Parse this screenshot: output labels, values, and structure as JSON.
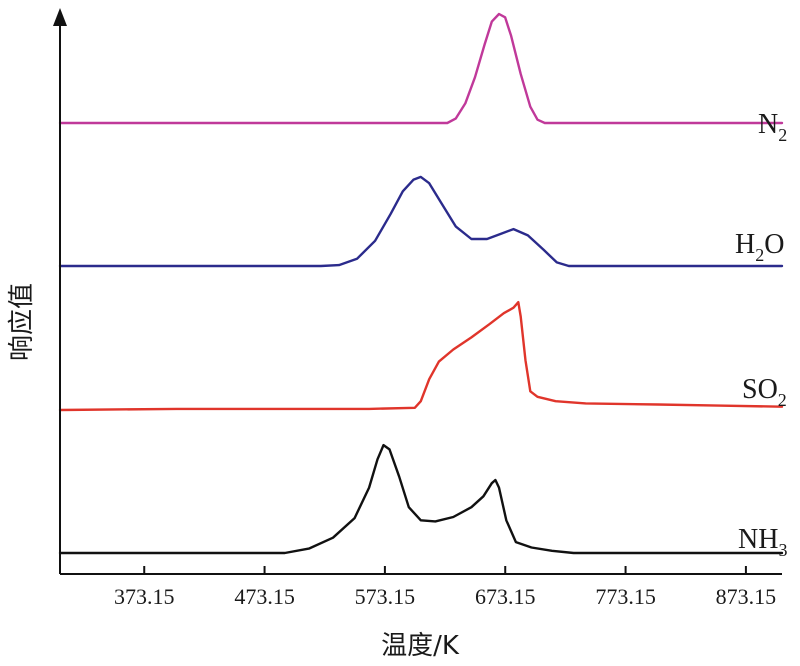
{
  "chart_data": {
    "type": "line",
    "xlabel": "温度/K",
    "ylabel": "响应值",
    "xlim": [
      303.15,
      903.15
    ],
    "x_ticks": [
      "373.15",
      "473.15",
      "573.15",
      "673.15",
      "773.15",
      "873.15"
    ],
    "y_ticks": [],
    "grid": false,
    "legend": "inline labels at right end of each curve",
    "series": [
      {
        "name": "N2",
        "label_main": "N",
        "label_sub": "2",
        "color": "#c0399a",
        "points": [
          [
            303.15,
            0.0
          ],
          [
            625,
            0.0
          ],
          [
            632,
            0.04
          ],
          [
            640,
            0.18
          ],
          [
            648,
            0.42
          ],
          [
            656,
            0.72
          ],
          [
            662,
            0.93
          ],
          [
            668,
            1.0
          ],
          [
            673,
            0.97
          ],
          [
            678,
            0.8
          ],
          [
            686,
            0.45
          ],
          [
            694,
            0.15
          ],
          [
            700,
            0.03
          ],
          [
            706,
            0.0
          ],
          [
            903.15,
            0.0
          ]
        ]
      },
      {
        "name": "H2O",
        "label_main": "H",
        "label_sub": "2",
        "label_tail": "O",
        "color": "#2b2b8c",
        "points": [
          [
            303.15,
            0.0
          ],
          [
            520,
            0.0
          ],
          [
            535,
            0.01
          ],
          [
            550,
            0.08
          ],
          [
            565,
            0.28
          ],
          [
            578,
            0.58
          ],
          [
            588,
            0.83
          ],
          [
            597,
            0.96
          ],
          [
            603,
            0.99
          ],
          [
            610,
            0.92
          ],
          [
            620,
            0.7
          ],
          [
            632,
            0.44
          ],
          [
            645,
            0.3
          ],
          [
            658,
            0.3
          ],
          [
            670,
            0.36
          ],
          [
            680,
            0.41
          ],
          [
            692,
            0.34
          ],
          [
            705,
            0.18
          ],
          [
            716,
            0.04
          ],
          [
            726,
            0.0
          ],
          [
            903.15,
            0.0
          ]
        ]
      },
      {
        "name": "SO2",
        "label_main": "SO",
        "label_sub": "2",
        "color": "#e0352b",
        "points": [
          [
            303.15,
            0.0
          ],
          [
            400,
            0.01
          ],
          [
            500,
            0.01
          ],
          [
            560,
            0.01
          ],
          [
            598,
            0.02
          ],
          [
            603,
            0.08
          ],
          [
            610,
            0.28
          ],
          [
            618,
            0.44
          ],
          [
            630,
            0.55
          ],
          [
            645,
            0.66
          ],
          [
            660,
            0.78
          ],
          [
            672,
            0.88
          ],
          [
            680,
            0.93
          ],
          [
            684,
            0.98
          ],
          [
            686,
            0.85
          ],
          [
            690,
            0.45
          ],
          [
            694,
            0.17
          ],
          [
            700,
            0.12
          ],
          [
            715,
            0.08
          ],
          [
            740,
            0.06
          ],
          [
            800,
            0.05
          ],
          [
            850,
            0.04
          ],
          [
            903.15,
            0.03
          ]
        ]
      },
      {
        "name": "NH3",
        "label_main": "NH",
        "label_sub": "3",
        "color": "#111111",
        "points": [
          [
            303.15,
            0.0
          ],
          [
            490,
            0.0
          ],
          [
            510,
            0.04
          ],
          [
            530,
            0.14
          ],
          [
            548,
            0.32
          ],
          [
            560,
            0.6
          ],
          [
            567,
            0.86
          ],
          [
            572,
            0.99
          ],
          [
            577,
            0.95
          ],
          [
            585,
            0.7
          ],
          [
            593,
            0.42
          ],
          [
            603,
            0.3
          ],
          [
            615,
            0.29
          ],
          [
            630,
            0.33
          ],
          [
            645,
            0.42
          ],
          [
            655,
            0.52
          ],
          [
            662,
            0.64
          ],
          [
            665,
            0.67
          ],
          [
            668,
            0.6
          ],
          [
            674,
            0.3
          ],
          [
            682,
            0.1
          ],
          [
            695,
            0.05
          ],
          [
            712,
            0.02
          ],
          [
            730,
            0.0
          ],
          [
            903.15,
            0.0
          ]
        ]
      }
    ]
  }
}
